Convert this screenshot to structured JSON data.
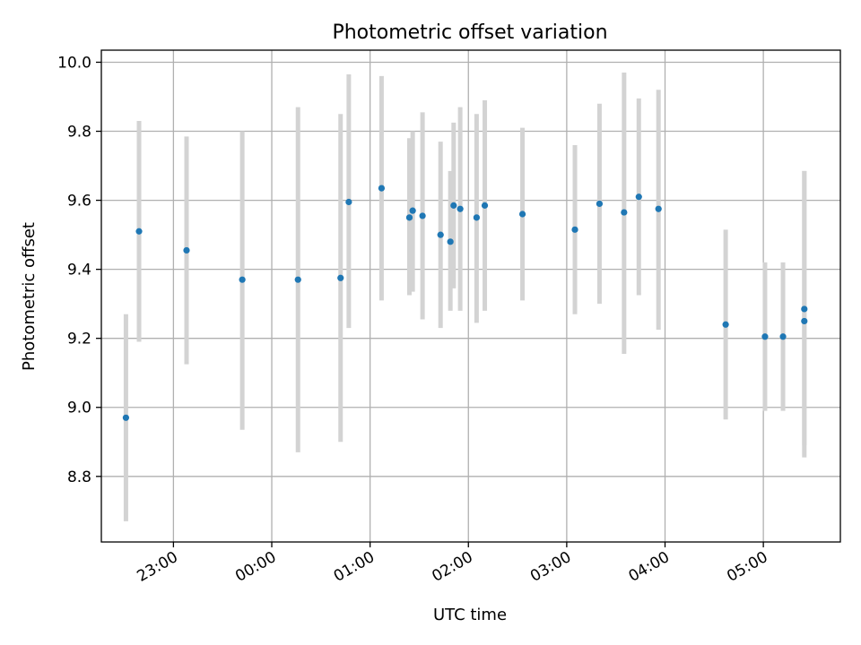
{
  "chart_data": {
    "type": "scatter",
    "title": "Photometric offset variation",
    "xlabel": "UTC time",
    "ylabel": "Photometric offset",
    "x_unit": "UTC time",
    "xlim": [
      "22:16",
      "05:47"
    ],
    "ylim": [
      8.61,
      10.035
    ],
    "grid": true,
    "x_ticks": [
      "23:00",
      "00:00",
      "01:00",
      "02:00",
      "03:00",
      "04:00",
      "05:00"
    ],
    "y_ticks": [
      8.8,
      9.0,
      9.2,
      9.4,
      9.6,
      9.8,
      10.0
    ],
    "colors": {
      "points": "#1f77b4",
      "error_bars": "#d3d3d3",
      "grid": "#b0b0b0"
    },
    "points": [
      {
        "t": "22:31",
        "y": 8.97,
        "lo": 8.67,
        "hi": 9.27
      },
      {
        "t": "22:39",
        "y": 9.51,
        "lo": 9.19,
        "hi": 9.83
      },
      {
        "t": "23:08",
        "y": 9.455,
        "lo": 9.125,
        "hi": 9.785
      },
      {
        "t": "23:42",
        "y": 9.37,
        "lo": 8.935,
        "hi": 9.8
      },
      {
        "t": "00:16",
        "y": 9.37,
        "lo": 8.87,
        "hi": 9.87
      },
      {
        "t": "00:42",
        "y": 9.375,
        "lo": 8.9,
        "hi": 9.85
      },
      {
        "t": "00:47",
        "y": 9.595,
        "lo": 9.23,
        "hi": 9.965
      },
      {
        "t": "01:07",
        "y": 9.635,
        "lo": 9.31,
        "hi": 9.96
      },
      {
        "t": "01:24",
        "y": 9.55,
        "lo": 9.325,
        "hi": 9.78
      },
      {
        "t": "01:26",
        "y": 9.57,
        "lo": 9.335,
        "hi": 9.8
      },
      {
        "t": "01:32",
        "y": 9.555,
        "lo": 9.255,
        "hi": 9.855
      },
      {
        "t": "01:43",
        "y": 9.5,
        "lo": 9.23,
        "hi": 9.77
      },
      {
        "t": "01:49",
        "y": 9.48,
        "lo": 9.28,
        "hi": 9.685
      },
      {
        "t": "01:51",
        "y": 9.585,
        "lo": 9.345,
        "hi": 9.825
      },
      {
        "t": "01:55",
        "y": 9.575,
        "lo": 9.28,
        "hi": 9.87
      },
      {
        "t": "02:05",
        "y": 9.55,
        "lo": 9.245,
        "hi": 9.85
      },
      {
        "t": "02:10",
        "y": 9.585,
        "lo": 9.28,
        "hi": 9.89
      },
      {
        "t": "02:33",
        "y": 9.56,
        "lo": 9.31,
        "hi": 9.81
      },
      {
        "t": "03:05",
        "y": 9.515,
        "lo": 9.27,
        "hi": 9.76
      },
      {
        "t": "03:20",
        "y": 9.59,
        "lo": 9.3,
        "hi": 9.88
      },
      {
        "t": "03:35",
        "y": 9.565,
        "lo": 9.155,
        "hi": 9.97
      },
      {
        "t": "03:44",
        "y": 9.61,
        "lo": 9.325,
        "hi": 9.895
      },
      {
        "t": "03:56",
        "y": 9.575,
        "lo": 9.225,
        "hi": 9.92
      },
      {
        "t": "04:37",
        "y": 9.24,
        "lo": 8.965,
        "hi": 9.515
      },
      {
        "t": "05:01",
        "y": 9.205,
        "lo": 8.99,
        "hi": 9.42
      },
      {
        "t": "05:12",
        "y": 9.205,
        "lo": 8.99,
        "hi": 9.42
      },
      {
        "t": "05:25",
        "y": 9.25,
        "lo": 8.89,
        "hi": 9.685
      },
      {
        "t": "05:25",
        "y": 9.285,
        "lo": 8.855,
        "hi": 9.685
      }
    ]
  }
}
